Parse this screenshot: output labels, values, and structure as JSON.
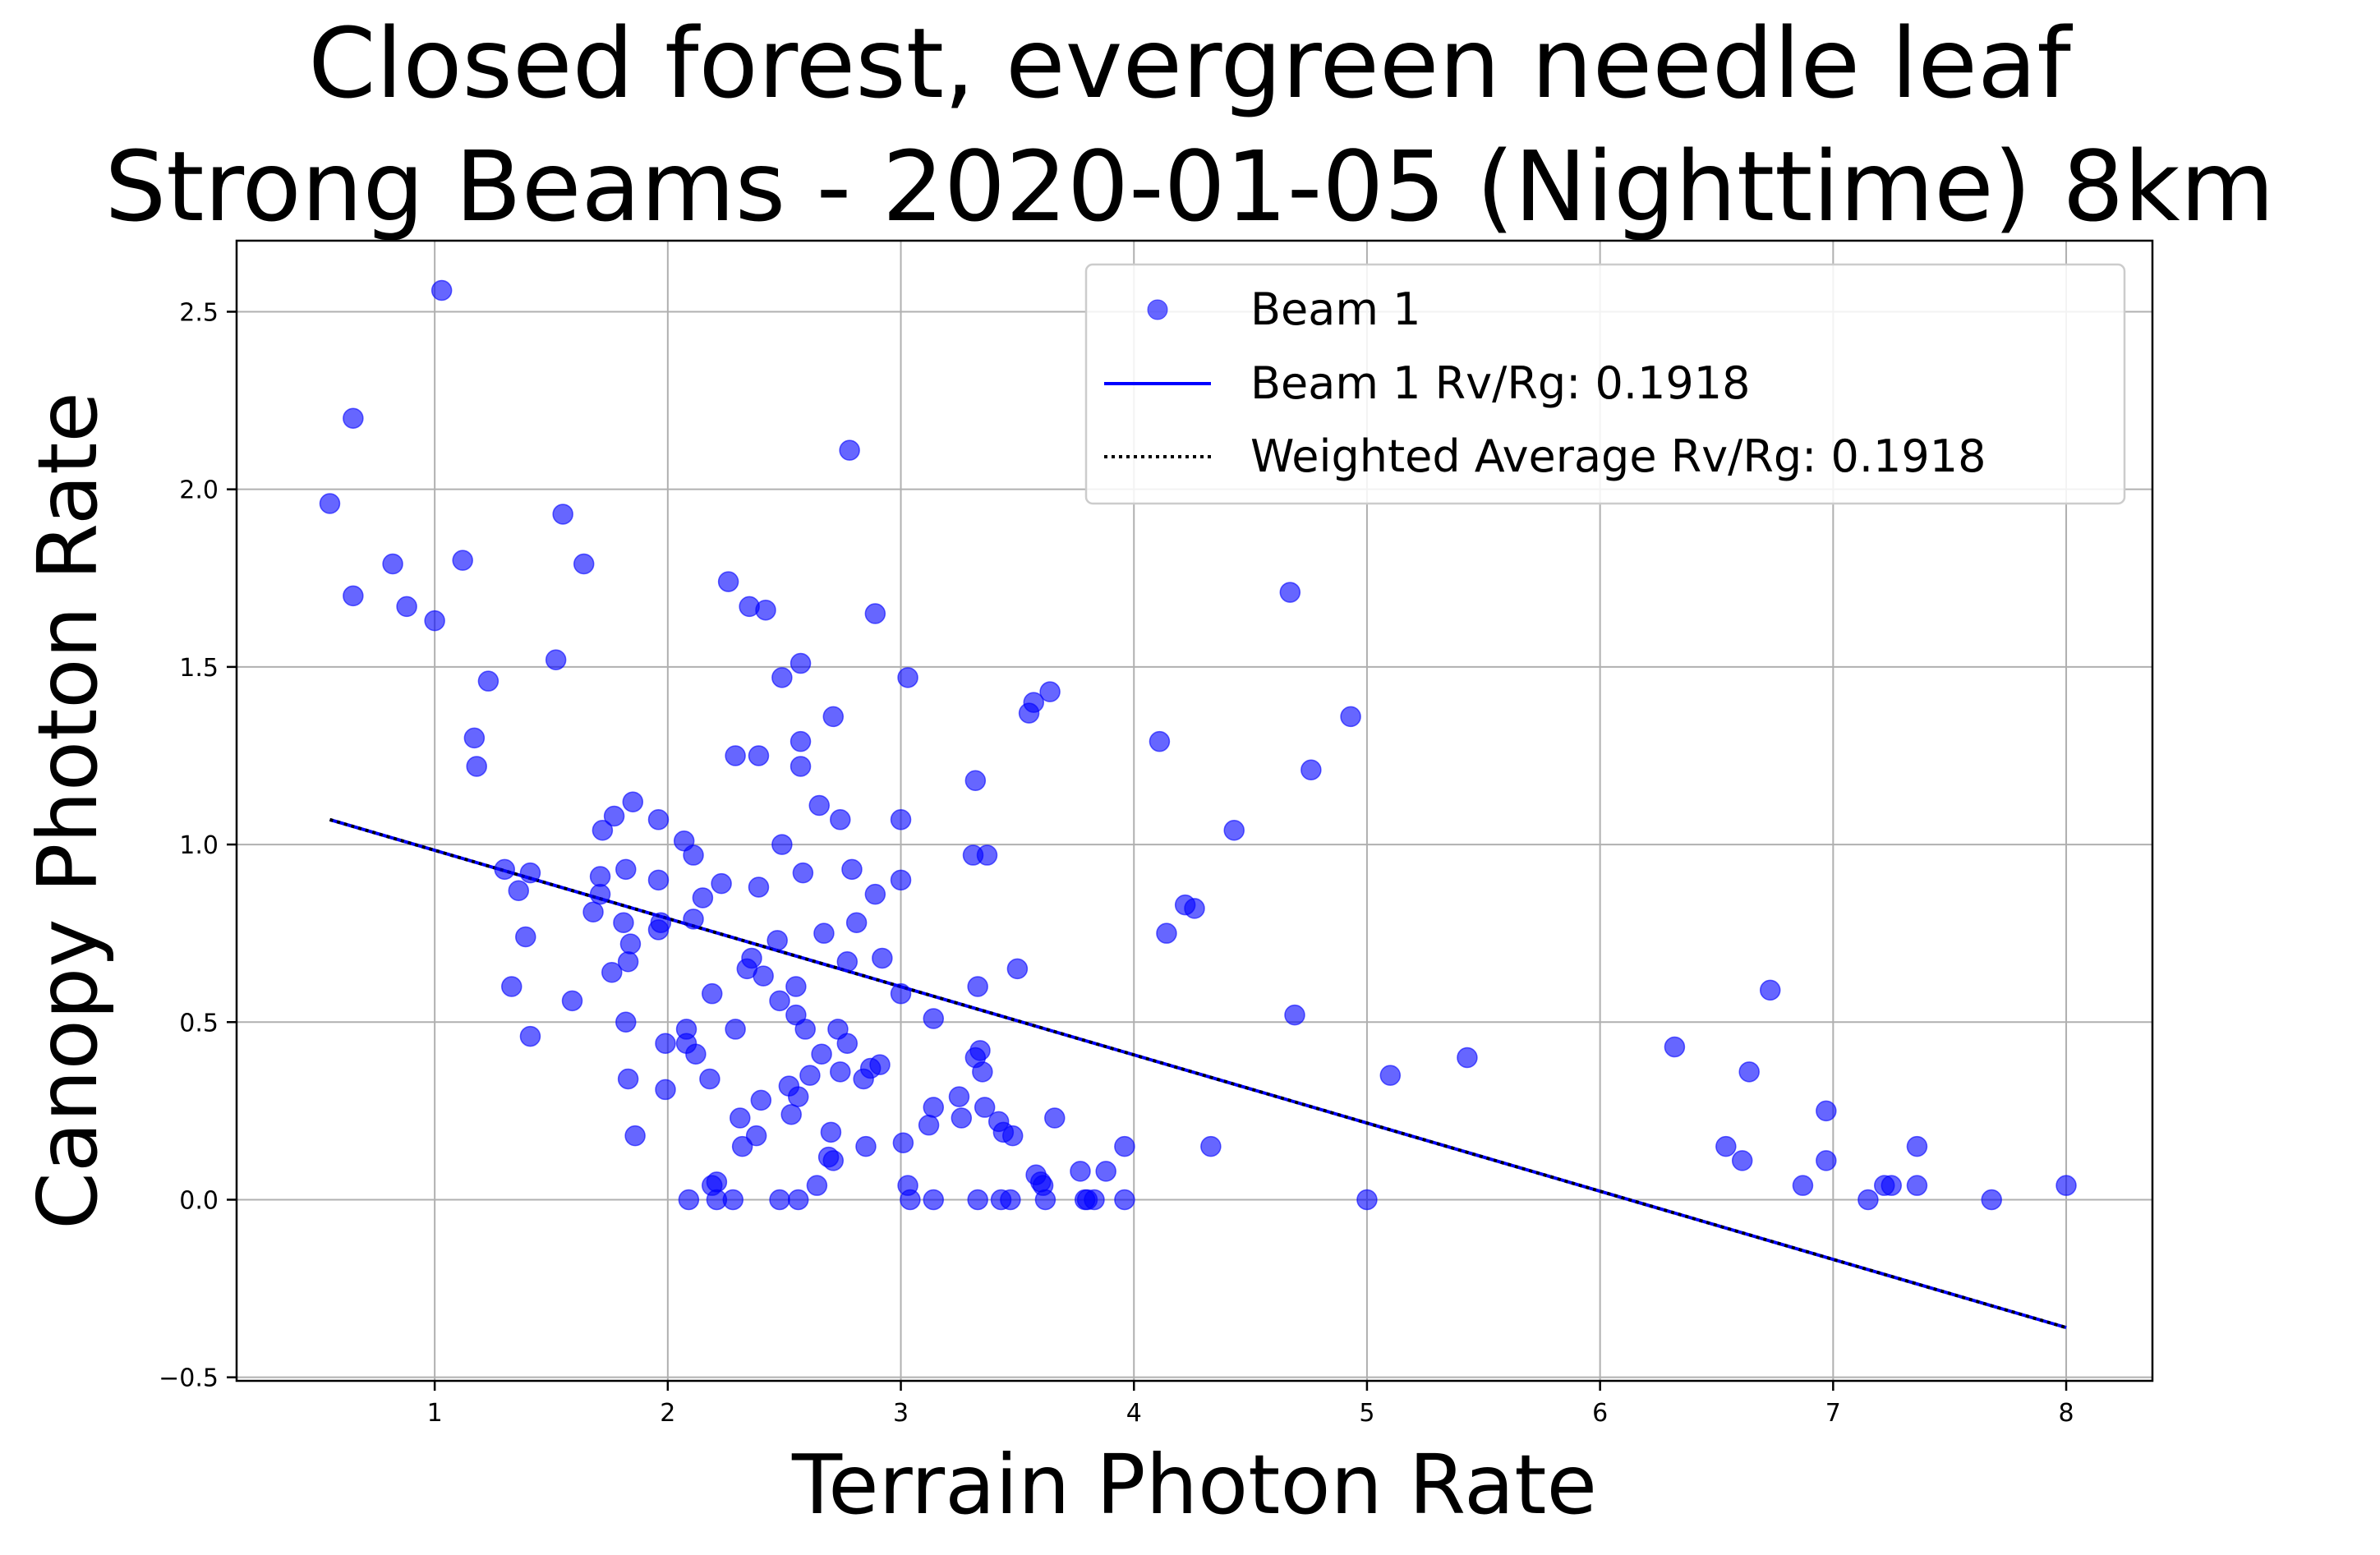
{
  "chart_data": {
    "type": "scatter",
    "title_lines": [
      "Closed forest, evergreen needle leaf",
      "Strong Beams - 2020-01-05 (Nighttime) 8km"
    ],
    "xlabel": "Terrain Photon Rate",
    "ylabel": "Canopy Photon Rate",
    "xlim": [
      0.15,
      8.37
    ],
    "ylim": [
      -0.51,
      2.7
    ],
    "xticks": [
      1,
      2,
      3,
      4,
      5,
      6,
      7,
      8
    ],
    "xtick_labels": [
      "1",
      "2",
      "3",
      "4",
      "5",
      "6",
      "7",
      "8"
    ],
    "yticks": [
      -0.5,
      0.0,
      0.5,
      1.0,
      1.5,
      2.0,
      2.5
    ],
    "ytick_labels": [
      "−0.5",
      "0.0",
      "0.5",
      "1.0",
      "1.5",
      "2.0",
      "2.5"
    ],
    "grid": true,
    "legend_position": "top-right",
    "colors": {
      "scatter": "#0000ff",
      "fit_line": "#0000ff",
      "avg_line": "#000000"
    },
    "legend": [
      {
        "label": "Beam 1",
        "kind": "marker"
      },
      {
        "label": "Beam 1 Rv/Rg: 0.1918",
        "kind": "solid-line"
      },
      {
        "label": "Weighted Average Rv/Rg: 0.1918",
        "kind": "dotted-line"
      }
    ],
    "fit_line": {
      "x": [
        0.55,
        8.0
      ],
      "y": [
        1.07,
        -0.36
      ]
    },
    "series": [
      {
        "name": "Beam 1",
        "points": [
          [
            0.55,
            1.96
          ],
          [
            0.65,
            2.2
          ],
          [
            0.65,
            1.7
          ],
          [
            0.82,
            1.79
          ],
          [
            0.88,
            1.67
          ],
          [
            1.0,
            1.63
          ],
          [
            1.03,
            2.56
          ],
          [
            1.12,
            1.8
          ],
          [
            1.17,
            1.3
          ],
          [
            1.18,
            1.22
          ],
          [
            1.23,
            1.46
          ],
          [
            1.3,
            0.93
          ],
          [
            1.33,
            0.6
          ],
          [
            1.36,
            0.87
          ],
          [
            1.39,
            0.74
          ],
          [
            1.41,
            0.92
          ],
          [
            1.41,
            0.46
          ],
          [
            1.52,
            1.52
          ],
          [
            1.55,
            1.93
          ],
          [
            1.59,
            0.56
          ],
          [
            1.64,
            1.79
          ],
          [
            1.68,
            0.81
          ],
          [
            1.71,
            0.91
          ],
          [
            1.71,
            0.86
          ],
          [
            1.72,
            1.04
          ],
          [
            1.76,
            0.64
          ],
          [
            1.77,
            1.08
          ],
          [
            1.81,
            0.78
          ],
          [
            1.82,
            0.93
          ],
          [
            1.82,
            0.5
          ],
          [
            1.83,
            0.67
          ],
          [
            1.83,
            0.34
          ],
          [
            1.84,
            0.72
          ],
          [
            1.85,
            1.12
          ],
          [
            1.86,
            0.18
          ],
          [
            1.96,
            1.07
          ],
          [
            1.96,
            0.9
          ],
          [
            1.96,
            0.76
          ],
          [
            1.97,
            0.78
          ],
          [
            1.99,
            0.44
          ],
          [
            1.99,
            0.31
          ],
          [
            2.07,
            1.01
          ],
          [
            2.08,
            0.48
          ],
          [
            2.08,
            0.44
          ],
          [
            2.09,
            0.0
          ],
          [
            2.11,
            0.97
          ],
          [
            2.11,
            0.79
          ],
          [
            2.12,
            0.41
          ],
          [
            2.15,
            0.85
          ],
          [
            2.18,
            0.34
          ],
          [
            2.19,
            0.58
          ],
          [
            2.19,
            0.04
          ],
          [
            2.21,
            0.05
          ],
          [
            2.21,
            0.0
          ],
          [
            2.23,
            0.89
          ],
          [
            2.26,
            1.74
          ],
          [
            2.28,
            0.0
          ],
          [
            2.29,
            1.25
          ],
          [
            2.29,
            0.48
          ],
          [
            2.31,
            0.23
          ],
          [
            2.32,
            0.15
          ],
          [
            2.34,
            0.65
          ],
          [
            2.35,
            1.67
          ],
          [
            2.36,
            0.68
          ],
          [
            2.38,
            0.18
          ],
          [
            2.39,
            1.25
          ],
          [
            2.39,
            0.88
          ],
          [
            2.4,
            0.28
          ],
          [
            2.41,
            0.63
          ],
          [
            2.42,
            1.66
          ],
          [
            2.47,
            0.73
          ],
          [
            2.48,
            0.0
          ],
          [
            2.48,
            0.56
          ],
          [
            2.49,
            1.47
          ],
          [
            2.49,
            1.0
          ],
          [
            2.52,
            0.32
          ],
          [
            2.53,
            0.24
          ],
          [
            2.55,
            0.6
          ],
          [
            2.55,
            0.52
          ],
          [
            2.56,
            0.29
          ],
          [
            2.56,
            0.0
          ],
          [
            2.57,
            1.51
          ],
          [
            2.57,
            1.29
          ],
          [
            2.57,
            1.22
          ],
          [
            2.58,
            0.92
          ],
          [
            2.59,
            0.48
          ],
          [
            2.61,
            0.35
          ],
          [
            2.64,
            0.04
          ],
          [
            2.65,
            1.11
          ],
          [
            2.66,
            0.41
          ],
          [
            2.67,
            0.75
          ],
          [
            2.69,
            0.12
          ],
          [
            2.7,
            0.19
          ],
          [
            2.71,
            1.36
          ],
          [
            2.71,
            0.11
          ],
          [
            2.73,
            0.48
          ],
          [
            2.74,
            1.07
          ],
          [
            2.74,
            0.36
          ],
          [
            2.77,
            0.67
          ],
          [
            2.77,
            0.44
          ],
          [
            2.78,
            2.11
          ],
          [
            2.79,
            0.93
          ],
          [
            2.81,
            0.78
          ],
          [
            2.84,
            0.34
          ],
          [
            2.85,
            0.15
          ],
          [
            2.87,
            0.37
          ],
          [
            2.89,
            0.86
          ],
          [
            2.89,
            1.65
          ],
          [
            2.91,
            0.38
          ],
          [
            2.92,
            0.68
          ],
          [
            3.0,
            1.07
          ],
          [
            3.0,
            0.9
          ],
          [
            3.0,
            0.58
          ],
          [
            3.01,
            0.16
          ],
          [
            3.03,
            1.47
          ],
          [
            3.03,
            0.04
          ],
          [
            3.04,
            0.0
          ],
          [
            3.12,
            0.21
          ],
          [
            3.14,
            0.51
          ],
          [
            3.14,
            0.26
          ],
          [
            3.14,
            0.0
          ],
          [
            3.25,
            0.29
          ],
          [
            3.26,
            0.23
          ],
          [
            3.31,
            0.97
          ],
          [
            3.32,
            1.18
          ],
          [
            3.32,
            0.4
          ],
          [
            3.33,
            0.6
          ],
          [
            3.33,
            0.0
          ],
          [
            3.34,
            0.42
          ],
          [
            3.35,
            0.36
          ],
          [
            3.36,
            0.26
          ],
          [
            3.37,
            0.97
          ],
          [
            3.42,
            0.22
          ],
          [
            3.43,
            0.0
          ],
          [
            3.44,
            0.19
          ],
          [
            3.47,
            0.0
          ],
          [
            3.48,
            0.18
          ],
          [
            3.5,
            0.65
          ],
          [
            3.55,
            1.37
          ],
          [
            3.57,
            1.4
          ],
          [
            3.58,
            0.07
          ],
          [
            3.6,
            0.05
          ],
          [
            3.61,
            0.04
          ],
          [
            3.62,
            0.0
          ],
          [
            3.64,
            1.43
          ],
          [
            3.66,
            0.23
          ],
          [
            3.77,
            0.08
          ],
          [
            3.79,
            0.0
          ],
          [
            3.8,
            0.0
          ],
          [
            3.83,
            0.0
          ],
          [
            3.88,
            0.08
          ],
          [
            3.96,
            0.15
          ],
          [
            3.96,
            0.0
          ],
          [
            4.11,
            1.29
          ],
          [
            4.14,
            0.75
          ],
          [
            4.22,
            0.83
          ],
          [
            4.26,
            0.82
          ],
          [
            4.33,
            0.15
          ],
          [
            4.43,
            1.04
          ],
          [
            4.67,
            1.71
          ],
          [
            4.69,
            0.52
          ],
          [
            4.76,
            1.21
          ],
          [
            4.93,
            1.36
          ],
          [
            5.0,
            0.0
          ],
          [
            5.1,
            0.35
          ],
          [
            5.43,
            0.4
          ],
          [
            6.32,
            0.43
          ],
          [
            6.54,
            0.15
          ],
          [
            6.61,
            0.11
          ],
          [
            6.64,
            0.36
          ],
          [
            6.73,
            0.59
          ],
          [
            6.87,
            0.04
          ],
          [
            6.97,
            0.25
          ],
          [
            6.97,
            0.11
          ],
          [
            7.15,
            0.0
          ],
          [
            7.22,
            0.04
          ],
          [
            7.25,
            0.04
          ],
          [
            7.36,
            0.15
          ],
          [
            7.36,
            0.04
          ],
          [
            7.68,
            0.0
          ],
          [
            8.0,
            0.04
          ]
        ]
      }
    ]
  }
}
